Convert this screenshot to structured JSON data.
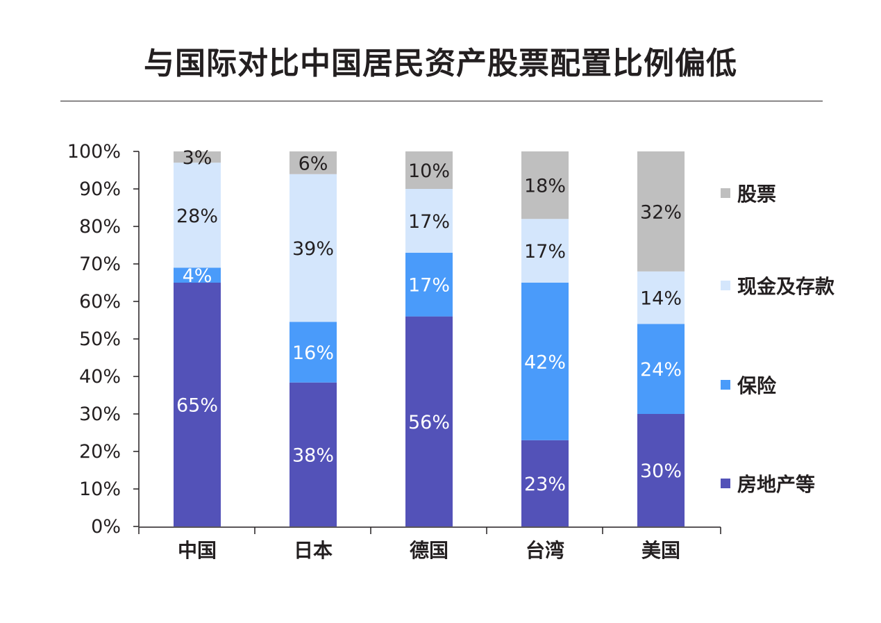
{
  "chart_data": {
    "type": "bar",
    "stacked": true,
    "title": "与国际对比中国居民资产股票配置比例偏低",
    "categories": [
      "中国",
      "日本",
      "德国",
      "台湾",
      "美国"
    ],
    "ylim": [
      0,
      100
    ],
    "yticks": [
      "0%",
      "10%",
      "20%",
      "30%",
      "40%",
      "50%",
      "60%",
      "70%",
      "80%",
      "90%",
      "100%"
    ],
    "legend_position": "right",
    "series": [
      {
        "name": "房地产等",
        "color": "#5352b8",
        "label_color": "#ffffff",
        "values": [
          65,
          38,
          56,
          23,
          30
        ],
        "labels": [
          "65%",
          "38%",
          "56%",
          "23%",
          "30%"
        ]
      },
      {
        "name": "保险",
        "color": "#4a9bfa",
        "label_color": "#ffffff",
        "values": [
          4,
          16,
          17,
          42,
          24
        ],
        "labels": [
          "4%",
          "16%",
          "17%",
          "42%",
          "24%"
        ]
      },
      {
        "name": "现金及存款",
        "color": "#d4e6fc",
        "label_color": "#231f20",
        "values": [
          28,
          39,
          17,
          17,
          14
        ],
        "labels": [
          "28%",
          "39%",
          "17%",
          "17%",
          "14%"
        ]
      },
      {
        "name": "股票",
        "color": "#bfbfbf",
        "label_color": "#231f20",
        "values": [
          3,
          6,
          10,
          18,
          32
        ],
        "labels": [
          "3%",
          "6%",
          "10%",
          "18%",
          "32%"
        ]
      }
    ]
  }
}
